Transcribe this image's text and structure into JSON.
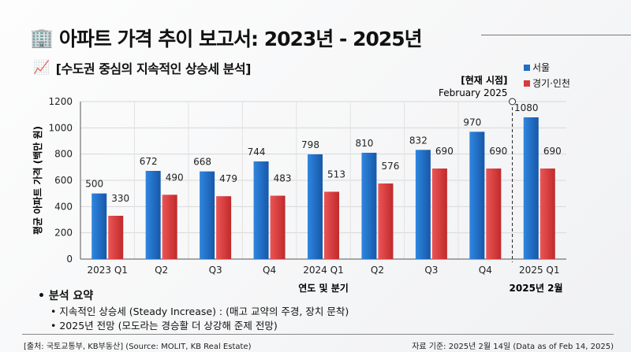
{
  "header": {
    "title": "아파트 가격 추이 보고서: 2023년 - 2025년",
    "subtitle": "[수도권 중심의 지속적인 상승세 분석]",
    "title_icon": "office-building-icon",
    "subtitle_icon": "chart-increasing-icon"
  },
  "chart_data": {
    "type": "bar",
    "ylabel": "평균 아파트 가격 (백만 원)",
    "xlabel": "연도 및 분기",
    "ylim": [
      0,
      1200
    ],
    "yticks": [
      0,
      200,
      400,
      600,
      800,
      1000,
      1200
    ],
    "categories": [
      "2023 Q1",
      "Q2",
      "Q3",
      "Q4",
      "2024 Q1",
      "Q2",
      "Q3",
      "Q4",
      "2025 Q1"
    ],
    "series": [
      {
        "name": "서울",
        "color": "#1f6fc5",
        "values": [
          500,
          672,
          668,
          744,
          798,
          810,
          832,
          970,
          1080
        ]
      },
      {
        "name": "경기·인천",
        "color": "#d93b3b",
        "values": [
          330,
          490,
          479,
          483,
          513,
          576,
          690,
          690,
          690
        ]
      }
    ],
    "grid": true,
    "legend": "top-right",
    "annotation": {
      "label": "[현재 시점]",
      "date": "February 2025",
      "bottom_label": "2025년 2월"
    }
  },
  "summary": {
    "heading": "분석 요약",
    "items": [
      "지속적인 상승세 (Steady Increase) : (매고 교약의 주경, 장치 문착)",
      "2025년 전망 (모도라는 경승활 더 상강해 준제 전망)"
    ]
  },
  "footer": {
    "source": "[출처: 국토교통부, KB부동산] (Source: MOLIT, KB Real Estate)",
    "date": "자료 기준: 2025년 2월 14일 (Data as of Feb 14, 2025)"
  }
}
